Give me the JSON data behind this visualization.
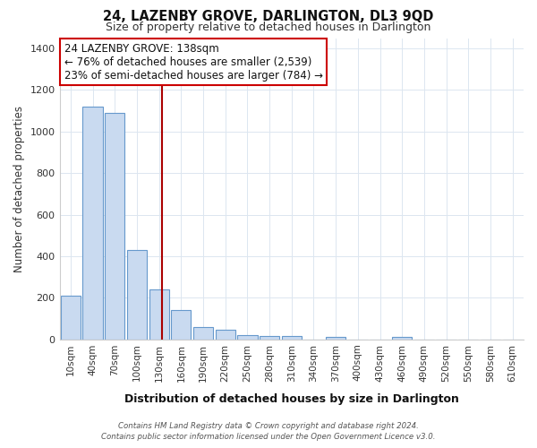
{
  "title": "24, LAZENBY GROVE, DARLINGTON, DL3 9QD",
  "subtitle": "Size of property relative to detached houses in Darlington",
  "xlabel": "Distribution of detached houses by size in Darlington",
  "ylabel": "Number of detached properties",
  "bar_labels": [
    "10sqm",
    "40sqm",
    "70sqm",
    "100sqm",
    "130sqm",
    "160sqm",
    "190sqm",
    "220sqm",
    "250sqm",
    "280sqm",
    "310sqm",
    "340sqm",
    "370sqm",
    "400sqm",
    "430sqm",
    "460sqm",
    "490sqm",
    "520sqm",
    "550sqm",
    "580sqm",
    "610sqm"
  ],
  "bar_values": [
    210,
    1120,
    1090,
    430,
    240,
    140,
    60,
    45,
    22,
    15,
    15,
    0,
    10,
    0,
    0,
    10,
    0,
    0,
    0,
    0,
    0
  ],
  "bar_color": "#c9daf0",
  "bar_edge_color": "#6699cc",
  "vline_index": 4.63,
  "vline_color": "#aa0000",
  "annotation_title": "24 LAZENBY GROVE: 138sqm",
  "annotation_line1": "← 76% of detached houses are smaller (2,539)",
  "annotation_line2": "23% of semi-detached houses are larger (784) →",
  "annotation_box_color": "#ffffff",
  "annotation_box_edge": "#cc0000",
  "ylim": [
    0,
    1450
  ],
  "yticks": [
    0,
    200,
    400,
    600,
    800,
    1000,
    1200,
    1400
  ],
  "footer_line1": "Contains HM Land Registry data © Crown copyright and database right 2024.",
  "footer_line2": "Contains public sector information licensed under the Open Government Licence v3.0.",
  "bg_color": "#ffffff",
  "grid_color": "#dce6f0"
}
